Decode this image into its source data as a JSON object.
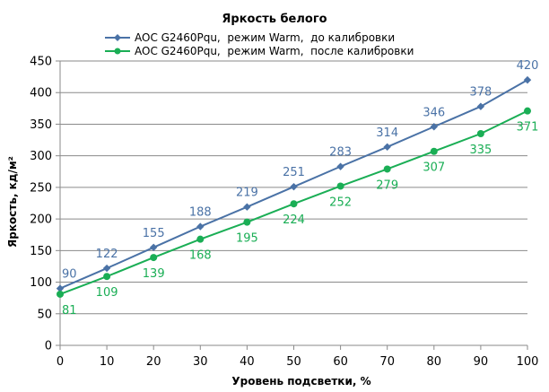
{
  "chart_data": {
    "type": "line",
    "title": "Яркость белого",
    "xlabel": "Уровень подсветки, %",
    "ylabel": "Яркость, кд/м²",
    "x": [
      0,
      10,
      20,
      30,
      40,
      50,
      60,
      70,
      80,
      90,
      100
    ],
    "xlim": [
      0,
      100
    ],
    "ylim": [
      0,
      450
    ],
    "xticks": [
      0,
      10,
      20,
      30,
      40,
      50,
      60,
      70,
      80,
      90,
      100
    ],
    "yticks": [
      0,
      50,
      100,
      150,
      200,
      250,
      300,
      350,
      400,
      450
    ],
    "grid": "horizontal",
    "legend": "top-center",
    "series": [
      {
        "name": "AOC G2460Pqu,  режим Warm,  до калибровки",
        "values": [
          90,
          122,
          155,
          188,
          219,
          251,
          283,
          314,
          346,
          378,
          420
        ],
        "color": "#4A72A6",
        "marker": "diamond",
        "label_position": "above"
      },
      {
        "name": "AOC G2460Pqu,  режим Warm,  после калибровки",
        "values": [
          81,
          109,
          139,
          168,
          195,
          224,
          252,
          279,
          307,
          335,
          371
        ],
        "color": "#1AAE55",
        "marker": "circle",
        "label_position": "below"
      }
    ]
  }
}
